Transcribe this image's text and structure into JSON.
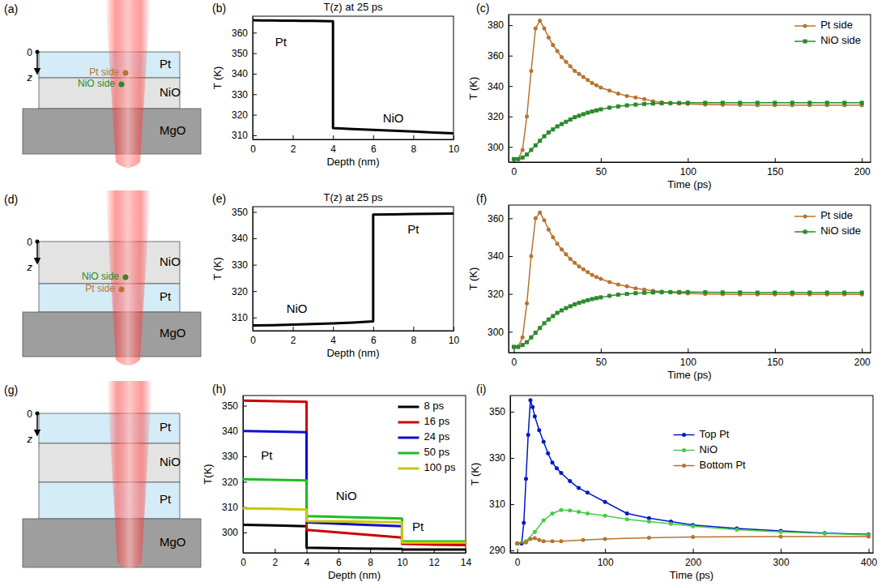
{
  "chart_data": [
    {
      "panel_label": "(b)",
      "type": "line",
      "title": "T(z) at 25 ps",
      "x_label": "Depth (nm)",
      "y_label": "T (K)",
      "x": [
        0,
        0.5,
        1,
        1.5,
        2,
        2.5,
        3,
        3.5,
        4,
        4,
        5,
        6,
        7,
        8,
        9,
        10
      ],
      "series": [
        {
          "color": "#000000",
          "values": [
            366,
            365.9,
            365.9,
            365.8,
            365.8,
            365.7,
            365.7,
            365.6,
            365.5,
            313.5,
            313,
            312.6,
            312.2,
            311.8,
            311.4,
            311
          ]
        }
      ],
      "xlim": [
        0,
        10
      ],
      "ylim": [
        308,
        368
      ],
      "xticks": [
        0,
        2,
        4,
        6,
        8,
        10
      ],
      "yticks": [
        310,
        320,
        330,
        340,
        350,
        360
      ],
      "annotations": [
        {
          "text": "Pt",
          "x": 1.4,
          "y": 355
        },
        {
          "text": "NiO",
          "x": 7,
          "y": 318
        }
      ]
    },
    {
      "panel_label": "(c)",
      "type": "line",
      "x_label": "Time (ps)",
      "y_label": "T (K)",
      "x": [
        0,
        2.5,
        5,
        7.5,
        10,
        12.5,
        15,
        17.5,
        20,
        22.5,
        25,
        27.5,
        30,
        32.5,
        35,
        37.5,
        40,
        42.5,
        45,
        47.5,
        50,
        55,
        60,
        65,
        70,
        75,
        80,
        85,
        90,
        95,
        100,
        110,
        120,
        130,
        140,
        150,
        160,
        170,
        180,
        190,
        200
      ],
      "series": [
        {
          "name": "Pt side",
          "color": "#b8732f",
          "marker": "circle",
          "values": [
            292,
            292,
            298,
            320,
            350,
            378,
            383,
            378,
            372,
            367,
            363,
            359,
            356,
            353,
            350,
            348,
            346,
            344,
            342,
            340.5,
            339,
            337,
            335,
            333.5,
            332.5,
            331.5,
            330,
            329.3,
            328.8,
            328.5,
            328.2,
            327.9,
            327.7,
            327.6,
            327.5,
            327.5,
            327.5,
            327.5,
            327.5,
            327.5,
            327.5
          ]
        },
        {
          "name": "NiO side",
          "color": "#2a8a2a",
          "marker": "square",
          "values": [
            292,
            292,
            293,
            295,
            298,
            301,
            304,
            307,
            309.5,
            311.5,
            313.5,
            315,
            316.5,
            318,
            319.5,
            320.5,
            321.5,
            322.5,
            323.3,
            324,
            324.7,
            325.8,
            326.6,
            327.3,
            327.8,
            328.2,
            328.5,
            328.7,
            328.8,
            328.9,
            329,
            329,
            329,
            329,
            329,
            329,
            329,
            329,
            329,
            329,
            329
          ]
        }
      ],
      "xlim": [
        -3,
        205
      ],
      "ylim": [
        290,
        387
      ],
      "xticks": [
        0,
        50,
        100,
        150,
        200
      ],
      "yticks": [
        300,
        320,
        340,
        360,
        380
      ],
      "legend": "upper right"
    },
    {
      "panel_label": "(e)",
      "type": "line",
      "title": "T(z) at 25 ps",
      "x_label": "Depth (nm)",
      "y_label": "T (K)",
      "x": [
        0,
        1,
        2,
        3,
        4,
        5,
        6,
        6,
        7,
        8,
        9,
        10
      ],
      "series": [
        {
          "color": "#000000",
          "values": [
            307,
            307.1,
            307.3,
            307.5,
            307.8,
            308.1,
            308.5,
            349,
            349.1,
            349.2,
            349.3,
            349.4
          ]
        }
      ],
      "xlim": [
        0,
        10
      ],
      "ylim": [
        305,
        352
      ],
      "xticks": [
        0,
        2,
        4,
        6,
        8,
        10
      ],
      "yticks": [
        310,
        320,
        330,
        340,
        350
      ],
      "annotations": [
        {
          "text": "NiO",
          "x": 2.2,
          "y": 313
        },
        {
          "text": "Pt",
          "x": 8,
          "y": 343
        }
      ]
    },
    {
      "panel_label": "(f)",
      "type": "line",
      "x_label": "Time (ps)",
      "y_label": "T (K)",
      "x": [
        0,
        2.5,
        5,
        7.5,
        10,
        12.5,
        15,
        17.5,
        20,
        22.5,
        25,
        27.5,
        30,
        32.5,
        35,
        37.5,
        40,
        42.5,
        45,
        47.5,
        50,
        55,
        60,
        65,
        70,
        75,
        80,
        85,
        90,
        95,
        100,
        110,
        120,
        130,
        140,
        150,
        160,
        170,
        180,
        190,
        200
      ],
      "series": [
        {
          "name": "Pt side",
          "color": "#b8732f",
          "marker": "circle",
          "values": [
            292,
            292,
            297,
            315,
            340,
            360,
            363,
            359,
            354,
            350,
            346.5,
            343.5,
            341,
            338.5,
            336.5,
            334.5,
            333,
            331.5,
            330,
            329,
            328,
            326.3,
            325,
            324,
            323,
            322.3,
            321.7,
            321.2,
            320.8,
            320.5,
            320.3,
            320,
            319.9,
            319.8,
            319.8,
            319.7,
            319.7,
            319.7,
            319.7,
            319.7,
            319.7
          ]
        },
        {
          "name": "NiO side",
          "color": "#2a8a2a",
          "marker": "square",
          "values": [
            292,
            292,
            293,
            294.5,
            297,
            299.5,
            302,
            304.5,
            306.5,
            308.3,
            310,
            311.3,
            312.5,
            313.5,
            314.5,
            315.3,
            316,
            316.7,
            317.3,
            317.8,
            318.2,
            319,
            319.6,
            320,
            320.4,
            320.6,
            320.8,
            320.9,
            321,
            321,
            321,
            320.9,
            320.8,
            320.8,
            320.7,
            320.7,
            320.7,
            320.7,
            320.7,
            320.7,
            320.7
          ]
        }
      ],
      "xlim": [
        -3,
        205
      ],
      "ylim": [
        289,
        367
      ],
      "xticks": [
        0,
        50,
        100,
        150,
        200
      ],
      "yticks": [
        300,
        320,
        340,
        360
      ],
      "legend": "upper right"
    },
    {
      "panel_label": "(h)",
      "type": "line",
      "x_label": "Depth (nm)",
      "y_label": "T(K)",
      "x": [
        0,
        2,
        4,
        4,
        7,
        10,
        10,
        12,
        14
      ],
      "series": [
        {
          "name": "8 ps",
          "color": "#000000",
          "values": [
            303,
            302.8,
            302.5,
            294,
            293.7,
            293.5,
            293.3,
            293.3,
            293.3
          ]
        },
        {
          "name": "16 ps",
          "color": "#cc0000",
          "values": [
            352,
            351.8,
            351.5,
            301,
            299.5,
            298,
            295.5,
            295.2,
            295
          ]
        },
        {
          "name": "24 ps",
          "color": "#1010cc",
          "values": [
            340,
            339.8,
            339.5,
            304,
            303.2,
            302.5,
            296,
            296,
            296
          ]
        },
        {
          "name": "50 ps",
          "color": "#22bb22",
          "values": [
            321,
            320.8,
            320.5,
            306.5,
            306,
            305.5,
            296.5,
            296.5,
            296.5
          ]
        },
        {
          "name": "100 ps",
          "color": "#c8c800",
          "values": [
            309.5,
            309.3,
            309,
            304.5,
            304.3,
            304,
            296,
            296,
            296
          ]
        }
      ],
      "xlim": [
        0,
        14
      ],
      "ylim": [
        292,
        354
      ],
      "xticks": [
        0,
        2,
        4,
        6,
        8,
        10,
        12,
        14
      ],
      "yticks": [
        300,
        310,
        320,
        330,
        340,
        350
      ],
      "legend": "upper right",
      "annotations": [
        {
          "text": "Pt",
          "x": 1.5,
          "y": 330
        },
        {
          "text": "NiO",
          "x": 6.5,
          "y": 314
        },
        {
          "text": "Pt",
          "x": 11,
          "y": 302
        }
      ]
    },
    {
      "panel_label": "(i)",
      "type": "line",
      "x_label": "Time (ps)",
      "y_label": "T (K)",
      "series": [
        {
          "name": "Top Pt",
          "color": "#0018c8",
          "marker": "circle",
          "x": [
            0,
            5,
            7.5,
            10,
            12.5,
            15,
            17.5,
            20,
            25,
            30,
            35,
            40,
            45,
            50,
            60,
            70,
            80,
            100,
            125,
            150,
            175,
            200,
            250,
            300,
            350,
            400
          ],
          "values": [
            293,
            293,
            302,
            321,
            340,
            355,
            352,
            348,
            342,
            337,
            332,
            328,
            325.5,
            323.5,
            320,
            317,
            315,
            311,
            306,
            304,
            302.5,
            301,
            299.5,
            298.5,
            297.5,
            297
          ]
        },
        {
          "name": "NiO",
          "color": "#44cc44",
          "marker": "circle",
          "x": [
            0,
            10,
            20,
            30,
            40,
            50,
            60,
            70,
            80,
            100,
            125,
            150,
            175,
            200,
            250,
            300,
            350,
            400
          ],
          "values": [
            293,
            294,
            298,
            303,
            306,
            307.5,
            307.3,
            306.7,
            306,
            305,
            303.5,
            302.5,
            301.5,
            300.5,
            299,
            298,
            297.3,
            296.7
          ]
        },
        {
          "name": "Bottom Pt",
          "color": "#b8732f",
          "marker": "circle",
          "x": [
            0,
            10,
            15,
            20,
            25,
            30,
            40,
            50,
            75,
            100,
            150,
            200,
            300,
            400
          ],
          "values": [
            293,
            293.5,
            295,
            295.3,
            294.5,
            294,
            294,
            294,
            294.5,
            295,
            295.5,
            295.8,
            296,
            296
          ]
        }
      ],
      "xlim": [
        -8,
        405
      ],
      "ylim": [
        289,
        357
      ],
      "xticks": [
        0,
        100,
        200,
        300,
        400
      ],
      "yticks": [
        290,
        310,
        330,
        350
      ],
      "legend": "center"
    }
  ],
  "diagrams": [
    {
      "panel_label": "(a)",
      "depth_origin": "0",
      "depth_axis": "z",
      "layers": [
        {
          "label": "Pt",
          "color": "#d4ecf7"
        },
        {
          "label": "NiO",
          "color": "#e3e3e3"
        },
        {
          "label": "MgO",
          "color": "#9e9e9e"
        }
      ],
      "points": [
        {
          "label": "Pt side",
          "color": "#b8732f"
        },
        {
          "label": "NiO side",
          "color": "#2a8a2a"
        }
      ]
    },
    {
      "panel_label": "(d)",
      "depth_origin": "0",
      "depth_axis": "z",
      "layers": [
        {
          "label": "NiO",
          "color": "#e3e3e3"
        },
        {
          "label": "Pt",
          "color": "#d4ecf7"
        },
        {
          "label": "MgO",
          "color": "#9e9e9e"
        }
      ],
      "points": [
        {
          "label": "NiO side",
          "color": "#2a8a2a"
        },
        {
          "label": "Pt side",
          "color": "#b8732f"
        }
      ]
    },
    {
      "panel_label": "(g)",
      "depth_origin": "0",
      "depth_axis": "z",
      "layers": [
        {
          "label": "Pt",
          "color": "#d4ecf7"
        },
        {
          "label": "NiO",
          "color": "#e3e3e3"
        },
        {
          "label": "Pt",
          "color": "#d4ecf7"
        },
        {
          "label": "MgO",
          "color": "#9e9e9e"
        }
      ],
      "points": []
    }
  ]
}
